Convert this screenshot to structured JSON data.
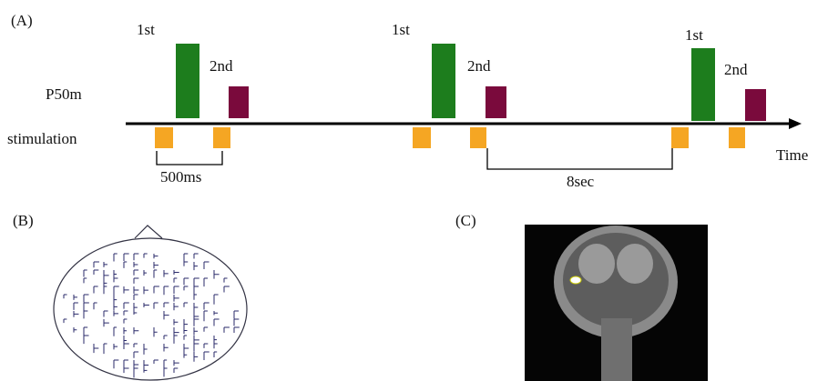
{
  "panel_a": {
    "label": "(A)",
    "pulses": [
      {
        "first": "1st",
        "second": "2nd"
      },
      {
        "first": "1st",
        "second": "2nd"
      },
      {
        "first": "1st",
        "second": "2nd"
      }
    ],
    "response_label": "P50m",
    "stimulation_label": "stimulation",
    "interval_label": "500ms",
    "gap_label": "8sec",
    "axis_label": "Time"
  },
  "panel_b": {
    "label": "(B)"
  },
  "panel_c": {
    "label": "(C)"
  }
}
